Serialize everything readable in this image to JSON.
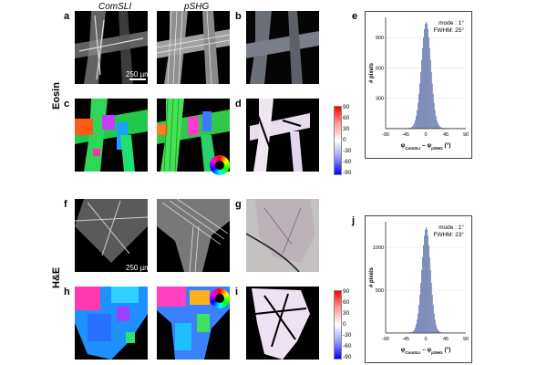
{
  "columns": {
    "comsli": "ComSLI",
    "pshg": "pSHG"
  },
  "rows": {
    "top": "Eosin",
    "bottom": "H&E"
  },
  "panel_labels": {
    "a": "a",
    "b": "b",
    "c": "c",
    "d": "d",
    "e": "e",
    "f": "f",
    "g": "g",
    "h": "h",
    "i": "i",
    "j": "j"
  },
  "scale_bar": "250 µm",
  "colorbar_ticks": [
    "90",
    "60",
    "30",
    "0",
    "-30",
    "-60",
    "-90"
  ],
  "chart_data": [
    {
      "type": "bar",
      "panel": "e",
      "annotation_mode": "mode : 1°",
      "annotation_fwhm": "FWHM: 25°",
      "ylabel": "# pixels",
      "xlabel_main": "φ",
      "xlabel_sub1": "ComSLI",
      "xlabel_mid": " – φ",
      "xlabel_sub2": "pSHG",
      "xlabel_unit": " (°)",
      "xlim": [
        -90,
        90
      ],
      "ylim": [
        0,
        1100
      ],
      "xticks": [
        "-90",
        "-45",
        "0",
        "45",
        "90"
      ],
      "yticks": [
        "300",
        "600",
        "900"
      ],
      "mode": 1,
      "fwhm": 25,
      "peak": 1050
    },
    {
      "type": "bar",
      "panel": "j",
      "annotation_mode": "mode : 1°",
      "annotation_fwhm": "FWHM: 23°",
      "ylabel": "# pixels",
      "xlabel_main": "φ",
      "xlabel_sub1": "ComSLI",
      "xlabel_mid": " – φ",
      "xlabel_sub2": "pSHG",
      "xlabel_unit": " (°)",
      "xlim": [
        -90,
        90
      ],
      "ylim": [
        0,
        1300
      ],
      "xticks": [
        "-90",
        "-45",
        "0",
        "45",
        "90"
      ],
      "yticks": [
        "500",
        "1000"
      ],
      "mode": 1,
      "fwhm": 23,
      "peak": 1230
    }
  ]
}
